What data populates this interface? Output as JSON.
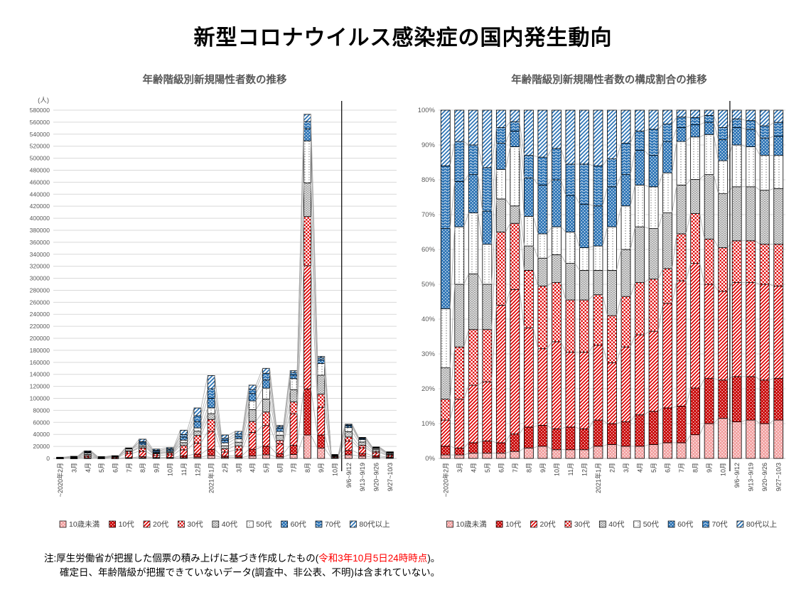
{
  "page": {
    "title": "新型コロナウイルス感染症の国内発生動向"
  },
  "note": {
    "prefix": "注:厚生労働省が把握した個票の積み上げに基づき作成したもの(",
    "highlight": "令和3年10月5日24時時点",
    "suffix": ")。",
    "line2": "確定日、年齢階級が把握できていないデータ(調査中、非公表、不明)は含まれていない。"
  },
  "palette": {
    "red": "#E00000",
    "dark_red": "#C80000",
    "pink": "#F2A0A0",
    "blue": "#2E75B6",
    "gray_fill": "#DBDBDB",
    "gridline": "#D9D9D9",
    "series_line": "#ABABAB",
    "axis_text": "#595959",
    "note_red": "#FF0000"
  },
  "chart_data": [
    {
      "type": "bar",
      "variant": "stacked",
      "title": "年齢階級別新規陽性者数の推移",
      "unit_label": "(人)",
      "ylim": [
        0,
        580000
      ],
      "ytick_step": 20000,
      "grid": true,
      "legend_position": "bottom",
      "ytick_labels": [
        "0",
        "20000",
        "40000",
        "60000",
        "80000",
        "100000",
        "120000",
        "140000",
        "160000",
        "180000",
        "200000",
        "220000",
        "240000",
        "260000",
        "280000",
        "300000",
        "320000",
        "340000",
        "360000",
        "380000",
        "400000",
        "420000",
        "440000",
        "460000",
        "480000",
        "500000",
        "520000",
        "540000",
        "560000",
        "580000"
      ],
      "categories": [
        "~2020年2月",
        "3月",
        "4月",
        "5月",
        "6月",
        "7月",
        "8月",
        "9月",
        "10月",
        "11月",
        "12月",
        "2021年1月",
        "2月",
        "3月",
        "4月",
        "5月",
        "6月",
        "7月",
        "8月",
        "9月",
        "10月",
        "9/6~9/12",
        "9/13~9/19",
        "9/20~9/26",
        "9/27~10/3"
      ],
      "series_names": [
        "10歳未満",
        "10代",
        "20代",
        "30代",
        "40代",
        "50代",
        "60代",
        "70代",
        "80代以上"
      ],
      "series_patterns": [
        "pink-dot",
        "red-dot-grid",
        "red-diag",
        "red-checker",
        "gray-dot",
        "white-dot",
        "blue-dot-grid",
        "blue-wave",
        "blue-diag"
      ],
      "totals": [
        2000,
        3500,
        12500,
        3000,
        4500,
        17500,
        32000,
        15500,
        18000,
        47000,
        84000,
        138000,
        39000,
        45000,
        122000,
        150000,
        55000,
        146000,
        573000,
        170000,
        6500,
        57000,
        35000,
        19000,
        11000
      ],
      "composition_pct": [
        [
          1,
          2.5,
          7.5,
          6,
          9,
          17,
          23,
          18,
          16
        ],
        [
          1,
          2,
          14,
          15,
          18,
          16.5,
          13,
          11.5,
          9
        ],
        [
          1.5,
          3,
          16.5,
          16,
          16,
          17.5,
          11,
          8.5,
          10
        ],
        [
          1.5,
          3.5,
          17,
          15,
          13,
          11.5,
          9.5,
          12.5,
          16.5
        ],
        [
          1.5,
          3,
          39.5,
          21,
          9.5,
          8.5,
          7.5,
          4.5,
          5
        ],
        [
          2,
          5,
          41.5,
          19,
          5,
          17,
          4.5,
          2.7,
          3.3
        ],
        [
          3,
          6,
          28.5,
          16.5,
          7,
          8.5,
          11,
          6.5,
          13
        ],
        [
          3.5,
          6,
          22,
          18,
          8,
          7,
          14,
          8,
          13.5
        ],
        [
          2.5,
          6,
          25,
          17,
          8,
          8,
          13.5,
          9,
          11
        ],
        [
          2.5,
          6.5,
          21.5,
          15,
          10.5,
          9,
          10.5,
          9,
          15.5
        ],
        [
          2.5,
          6,
          22,
          15,
          8.5,
          6.5,
          12.5,
          11.5,
          15.5
        ],
        [
          3.5,
          7.5,
          21.5,
          14.5,
          7,
          7,
          11.5,
          11.5,
          16
        ],
        [
          4,
          6,
          17.5,
          13.5,
          13,
          12.5,
          11.5,
          8,
          14
        ],
        [
          3.5,
          7,
          21.5,
          14.5,
          13.5,
          12.5,
          9,
          9,
          9.5
        ],
        [
          3.5,
          9,
          23,
          15,
          16,
          12,
          10,
          5.5,
          6
        ],
        [
          4,
          9.5,
          23,
          15,
          14.5,
          12,
          9,
          7.5,
          5.5
        ],
        [
          4.5,
          10,
          30,
          10,
          16,
          11.5,
          9,
          5,
          4
        ],
        [
          4.5,
          10.5,
          36,
          13.5,
          14,
          12.5,
          4,
          3,
          2
        ],
        [
          6.8,
          13.4,
          35.8,
          14.3,
          9.8,
          12.2,
          3.5,
          2.1,
          2.1
        ],
        [
          10,
          13,
          27,
          13,
          18.5,
          11.5,
          3.5,
          2,
          1.5
        ],
        [
          11.5,
          11,
          25.5,
          12.5,
          15.5,
          9.5,
          6,
          3.5,
          5
        ],
        [
          10.5,
          13,
          27,
          12,
          15.5,
          12,
          5,
          2.5,
          2.5
        ],
        [
          11,
          12.5,
          27,
          12,
          15.5,
          11.5,
          5,
          2.5,
          3
        ],
        [
          10,
          12.5,
          27.5,
          11.5,
          15.5,
          10,
          5,
          3.5,
          4.5
        ],
        [
          11,
          12,
          26.5,
          12,
          16,
          9.5,
          5.5,
          4,
          3.5
        ]
      ],
      "divider_between": [
        "10月",
        "9/6~9/12"
      ]
    },
    {
      "type": "bar",
      "variant": "stacked-100",
      "title": "年齢階級別新規陽性者数の構成割合の推移",
      "ylim": [
        0,
        100
      ],
      "ytick_step": 10,
      "grid": true,
      "legend_position": "bottom",
      "ytick_labels": [
        "0%",
        "10%",
        "20%",
        "30%",
        "40%",
        "50%",
        "60%",
        "70%",
        "80%",
        "90%",
        "100%"
      ],
      "categories": [
        "~2020年2月",
        "3月",
        "4月",
        "5月",
        "6月",
        "7月",
        "8月",
        "9月",
        "10月",
        "11月",
        "12月",
        "2021年1月",
        "2月",
        "3月",
        "4月",
        "5月",
        "6月",
        "7月",
        "8月",
        "9月",
        "10月",
        "9/6~9/12",
        "9/13~9/19",
        "9/20~9/26",
        "9/27~10/3"
      ],
      "series_names": [
        "10歳未満",
        "10代",
        "20代",
        "30代",
        "40代",
        "50代",
        "60代",
        "70代",
        "80代以上"
      ],
      "series_patterns": [
        "pink-dot",
        "red-dot-grid",
        "red-diag",
        "red-checker",
        "gray-dot",
        "white-dot",
        "blue-dot-grid",
        "blue-wave",
        "blue-diag"
      ],
      "composition_pct": [
        [
          1,
          2.5,
          7.5,
          6,
          9,
          17,
          23,
          18,
          16
        ],
        [
          1,
          2,
          14,
          15,
          18,
          16.5,
          13,
          11.5,
          9
        ],
        [
          1.5,
          3,
          16.5,
          16,
          16,
          17.5,
          11,
          8.5,
          10
        ],
        [
          1.5,
          3.5,
          17,
          15,
          13,
          11.5,
          9.5,
          12.5,
          16.5
        ],
        [
          1.5,
          3,
          39.5,
          21,
          9.5,
          8.5,
          7.5,
          4.5,
          5
        ],
        [
          2,
          5,
          41.5,
          19,
          5,
          17,
          4.5,
          2.7,
          3.3
        ],
        [
          3,
          6,
          28.5,
          16.5,
          7,
          8.5,
          11,
          6.5,
          13
        ],
        [
          3.5,
          6,
          22,
          18,
          8,
          7,
          14,
          8,
          13.5
        ],
        [
          2.5,
          6,
          25,
          17,
          8,
          8,
          13.5,
          9,
          11
        ],
        [
          2.5,
          6.5,
          21.5,
          15,
          10.5,
          9,
          10.5,
          9,
          15.5
        ],
        [
          2.5,
          6,
          22,
          15,
          8.5,
          6.5,
          12.5,
          11.5,
          15.5
        ],
        [
          3.5,
          7.5,
          21.5,
          14.5,
          7,
          7,
          11.5,
          11.5,
          16
        ],
        [
          4,
          6,
          17.5,
          13.5,
          13,
          12.5,
          11.5,
          8,
          14
        ],
        [
          3.5,
          7,
          21.5,
          14.5,
          13.5,
          12.5,
          9,
          9,
          9.5
        ],
        [
          3.5,
          9,
          23,
          15,
          16,
          12,
          10,
          5.5,
          6
        ],
        [
          4,
          9.5,
          23,
          15,
          14.5,
          12,
          9,
          7.5,
          5.5
        ],
        [
          4.5,
          10,
          30,
          10,
          16,
          11.5,
          9,
          5,
          4
        ],
        [
          4.5,
          10.5,
          36,
          13.5,
          14,
          12.5,
          4,
          3,
          2
        ],
        [
          6.8,
          13.4,
          35.8,
          14.3,
          9.8,
          12.2,
          3.5,
          2.1,
          2.1
        ],
        [
          10,
          13,
          27,
          13,
          18.5,
          11.5,
          3.5,
          2,
          1.5
        ],
        [
          11.5,
          11,
          25.5,
          12.5,
          15.5,
          9.5,
          6,
          3.5,
          5
        ],
        [
          10.5,
          13,
          27,
          12,
          15.5,
          12,
          5,
          2.5,
          2.5
        ],
        [
          11,
          12.5,
          27,
          12,
          15.5,
          11.5,
          5,
          2.5,
          3
        ],
        [
          10,
          12.5,
          27.5,
          11.5,
          15.5,
          10,
          5,
          3.5,
          4.5
        ],
        [
          11,
          12,
          26.5,
          12,
          16,
          9.5,
          5.5,
          4,
          3.5
        ]
      ],
      "divider_between": [
        "10月",
        "9/6~9/12"
      ]
    }
  ]
}
